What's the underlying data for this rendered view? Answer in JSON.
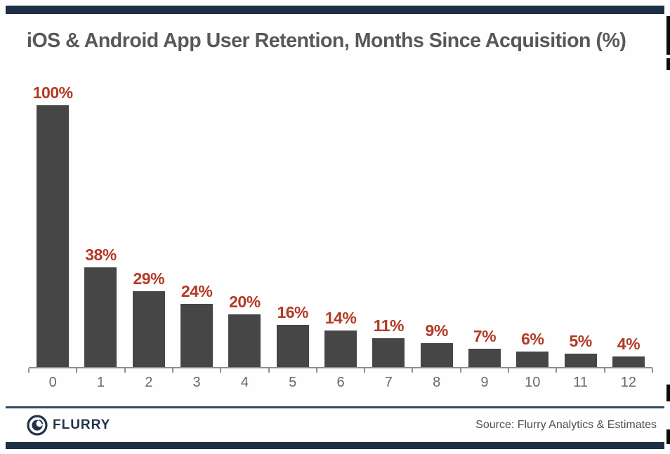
{
  "chart_data": {
    "type": "bar",
    "title": "iOS & Android App User Retention, Months Since Acquisition (%)",
    "xlabel": "",
    "ylabel": "",
    "categories": [
      "0",
      "1",
      "2",
      "3",
      "4",
      "5",
      "6",
      "7",
      "8",
      "9",
      "10",
      "11",
      "12"
    ],
    "values": [
      100,
      38,
      29,
      24,
      20,
      16,
      14,
      11,
      9,
      7,
      6,
      5,
      4
    ],
    "value_labels": [
      "100%",
      "38%",
      "29%",
      "24%",
      "20%",
      "16%",
      "14%",
      "11%",
      "9%",
      "7%",
      "6%",
      "5%",
      "4%"
    ],
    "ylim": [
      0,
      100
    ],
    "grid": "off",
    "legend": "none",
    "bar_color": "#464646",
    "value_label_color": "#b23a24",
    "axis_color": "#8f8f8f",
    "tick_label_color": "#696969"
  },
  "header": {
    "accent_color": "#1d2f44"
  },
  "footer": {
    "logo_text": "FLURRY",
    "logo_icon": "flurry-swirl-icon",
    "logo_color": "#22334a",
    "source": "Source: Flurry Analytics & Estimates"
  }
}
